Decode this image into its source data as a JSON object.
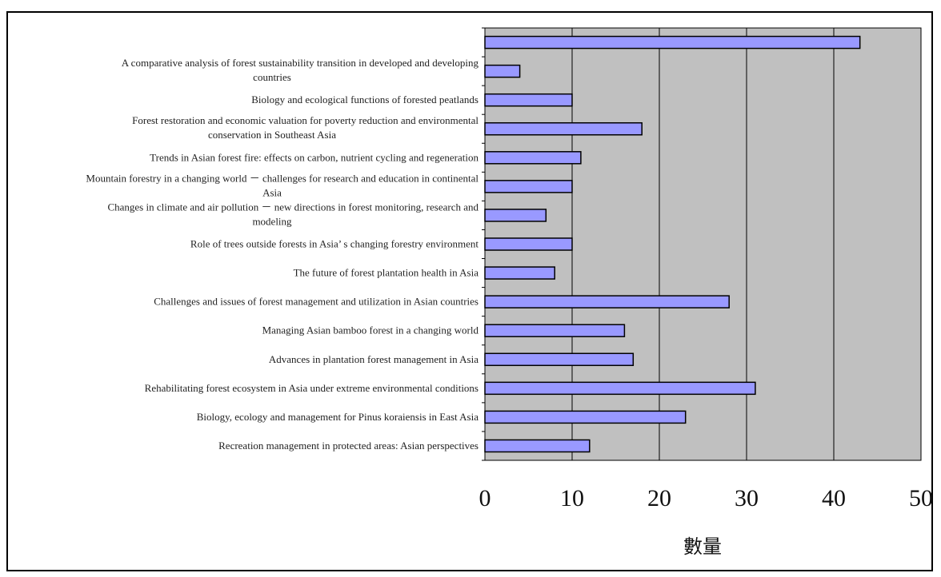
{
  "chart_data": {
    "type": "bar",
    "orientation": "horizontal",
    "categories": [
      "",
      "A comparative analysis of forest sustainability transition in developed and developing countries",
      "Biology and ecological functions of forested peatlands",
      "Forest restoration and economic valuation for poverty reduction and environmental conservation in Southeast Asia",
      "Trends in Asian forest fire: effects on carbon, nutrient cycling and regeneration",
      "Mountain forestry in a changing world － challenges for research and education in continental Asia",
      "Changes in climate and air pollution － new directions in forest monitoring, research and modeling",
      "Role of trees outside forests in Asia’ s changing forestry environment",
      "The future of forest plantation health in Asia",
      "Challenges and issues of forest management and utilization in Asian countries",
      "Managing Asian bamboo forest in a changing world",
      "Advances in plantation forest management in Asia",
      "Rehabilitating forest ecosystem in Asia under extreme environmental conditions",
      "Biology, ecology and management for Pinus koraiensis in East Asia",
      "Recreation management in protected areas: Asian perspectives"
    ],
    "label_lines": [
      [
        ""
      ],
      [
        "A comparative analysis of forest sustainability transition in developed and developing",
        "countries"
      ],
      [
        "Biology and ecological functions of forested peatlands"
      ],
      [
        "Forest restoration and economic valuation for poverty reduction and environmental",
        "conservation in Southeast Asia"
      ],
      [
        "Trends in Asian forest fire: effects on carbon, nutrient cycling and regeneration"
      ],
      [
        "Mountain forestry in a changing world － challenges for research and education in continental",
        "Asia"
      ],
      [
        "Changes in climate and air pollution － new directions in forest monitoring, research and",
        "modeling"
      ],
      [
        "Role of trees outside forests in Asia’ s changing forestry environment"
      ],
      [
        "The future of forest plantation health in Asia"
      ],
      [
        "Challenges and issues of forest management and utilization in Asian countries"
      ],
      [
        "Managing Asian bamboo forest in a changing world"
      ],
      [
        "Advances in plantation forest management in Asia"
      ],
      [
        "Rehabilitating forest ecosystem in Asia under extreme environmental conditions"
      ],
      [
        "Biology, ecology and management for Pinus koraiensis in East Asia"
      ],
      [
        "Recreation management in protected areas: Asian perspectives"
      ]
    ],
    "values": [
      43,
      4,
      10,
      18,
      11,
      10,
      7,
      10,
      8,
      28,
      16,
      17,
      31,
      23,
      12
    ],
    "xlim": [
      0,
      50
    ],
    "xticks": [
      0,
      10,
      20,
      30,
      40,
      50
    ],
    "xlabel": "數量",
    "ylabel": "",
    "title": "",
    "grid": "vertical",
    "legend": "none",
    "colors": {
      "bar_fill": "#9999ff",
      "bar_stroke": "#000000",
      "plot_background": "#c0c0c0",
      "gridline": "#000000"
    }
  }
}
